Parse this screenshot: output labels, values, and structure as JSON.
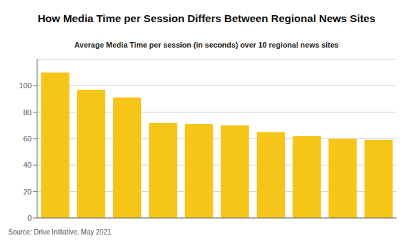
{
  "chart_data": {
    "type": "bar",
    "title": "How Media Time per Session Differs Between Regional News Sites",
    "subtitle": "Average Media Time per session (in seconds) over 10 regional news sites",
    "source": "Source: Drive Initiative, May 2021",
    "categories": [
      null,
      null,
      null,
      null,
      null,
      null,
      null,
      null,
      null,
      null
    ],
    "values": [
      110,
      97,
      91,
      72,
      71,
      70,
      65,
      62,
      60,
      59
    ],
    "color": "#F5C518",
    "ylim": [
      0,
      120
    ],
    "yticks": [
      0,
      20,
      40,
      60,
      80,
      100
    ],
    "grid": true,
    "tick_labels": "y"
  }
}
